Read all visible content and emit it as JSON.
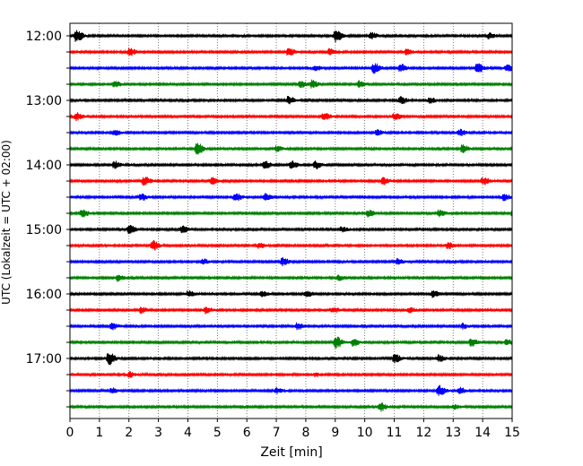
{
  "chart_data": {
    "type": "line",
    "subtype": "helicorder",
    "xlabel": "Zeit  [min]",
    "ylabel": "UTC (Lokalzeit = UTC + 02:00)",
    "xlim": [
      0,
      15
    ],
    "xticks": [
      "0",
      "1",
      "2",
      "3",
      "4",
      "5",
      "6",
      "7",
      "8",
      "9",
      "10",
      "11",
      "12",
      "13",
      "14",
      "15"
    ],
    "grid": "vertical-dotted",
    "hour_labels": [
      "12:00",
      "13:00",
      "14:00",
      "15:00",
      "16:00",
      "17:00"
    ],
    "row_interval_minutes": 15,
    "colors": [
      "#000000",
      "#ff0000",
      "#0000ff",
      "#008000"
    ],
    "traces": [
      {
        "start": "12:00",
        "color": "#000000",
        "events": [
          [
            0.2,
            1.0
          ],
          [
            9.0,
            0.9
          ],
          [
            10.2,
            0.5
          ],
          [
            14.2,
            0.4
          ]
        ]
      },
      {
        "start": "12:15",
        "color": "#ff0000",
        "events": [
          [
            2.0,
            0.6
          ],
          [
            7.4,
            0.6
          ],
          [
            8.8,
            0.5
          ],
          [
            11.4,
            0.4
          ]
        ]
      },
      {
        "start": "12:30",
        "color": "#0000ff",
        "events": [
          [
            8.3,
            0.4
          ],
          [
            10.3,
            0.8
          ],
          [
            11.2,
            0.6
          ],
          [
            13.8,
            0.8
          ],
          [
            14.8,
            0.6
          ]
        ]
      },
      {
        "start": "12:45",
        "color": "#008000",
        "events": [
          [
            1.5,
            0.5
          ],
          [
            7.8,
            0.6
          ],
          [
            8.2,
            0.6
          ],
          [
            9.8,
            0.5
          ]
        ]
      },
      {
        "start": "13:00",
        "color": "#000000",
        "events": [
          [
            7.4,
            0.6
          ],
          [
            11.2,
            0.6
          ],
          [
            12.2,
            0.4
          ]
        ]
      },
      {
        "start": "13:15",
        "color": "#ff0000",
        "events": [
          [
            0.2,
            0.6
          ],
          [
            8.6,
            0.6
          ],
          [
            11.0,
            0.6
          ]
        ]
      },
      {
        "start": "13:30",
        "color": "#0000ff",
        "events": [
          [
            1.5,
            0.4
          ],
          [
            10.4,
            0.4
          ],
          [
            13.2,
            0.5
          ]
        ]
      },
      {
        "start": "13:45",
        "color": "#008000",
        "events": [
          [
            4.3,
            0.9
          ],
          [
            7.0,
            0.4
          ],
          [
            13.3,
            0.6
          ]
        ]
      },
      {
        "start": "14:00",
        "color": "#000000",
        "events": [
          [
            1.5,
            0.6
          ],
          [
            6.6,
            0.6
          ],
          [
            7.5,
            0.6
          ],
          [
            8.3,
            0.6
          ]
        ]
      },
      {
        "start": "14:15",
        "color": "#ff0000",
        "events": [
          [
            2.5,
            0.7
          ],
          [
            4.8,
            0.5
          ],
          [
            10.6,
            0.5
          ],
          [
            14.0,
            0.6
          ]
        ]
      },
      {
        "start": "14:30",
        "color": "#0000ff",
        "events": [
          [
            2.4,
            0.5
          ],
          [
            5.6,
            0.6
          ],
          [
            6.6,
            0.5
          ],
          [
            14.7,
            0.5
          ]
        ]
      },
      {
        "start": "14:45",
        "color": "#008000",
        "events": [
          [
            0.4,
            0.6
          ],
          [
            10.1,
            0.5
          ],
          [
            12.5,
            0.5
          ],
          [
            15.0,
            0.4
          ]
        ]
      },
      {
        "start": "15:00",
        "color": "#000000",
        "events": [
          [
            2.0,
            0.7
          ],
          [
            3.8,
            0.5
          ],
          [
            9.2,
            0.4
          ]
        ]
      },
      {
        "start": "15:15",
        "color": "#ff0000",
        "events": [
          [
            2.8,
            0.8
          ],
          [
            6.4,
            0.4
          ],
          [
            12.8,
            0.5
          ]
        ]
      },
      {
        "start": "15:30",
        "color": "#0000ff",
        "events": [
          [
            4.5,
            0.4
          ],
          [
            7.2,
            0.6
          ],
          [
            11.1,
            0.4
          ]
        ]
      },
      {
        "start": "15:45",
        "color": "#008000",
        "events": [
          [
            1.6,
            0.5
          ],
          [
            9.1,
            0.4
          ]
        ]
      },
      {
        "start": "16:00",
        "color": "#000000",
        "events": [
          [
            4.0,
            0.5
          ],
          [
            6.5,
            0.4
          ],
          [
            8.0,
            0.5
          ],
          [
            12.3,
            0.5
          ]
        ]
      },
      {
        "start": "16:15",
        "color": "#ff0000",
        "events": [
          [
            2.4,
            0.5
          ],
          [
            4.6,
            0.5
          ],
          [
            8.9,
            0.4
          ],
          [
            11.5,
            0.4
          ]
        ]
      },
      {
        "start": "16:30",
        "color": "#0000ff",
        "events": [
          [
            1.4,
            0.5
          ],
          [
            7.7,
            0.5
          ],
          [
            13.3,
            0.4
          ]
        ]
      },
      {
        "start": "16:45",
        "color": "#008000",
        "events": [
          [
            9.0,
            1.0
          ],
          [
            9.6,
            0.6
          ],
          [
            13.6,
            0.6
          ],
          [
            14.8,
            0.4
          ]
        ]
      },
      {
        "start": "17:00",
        "color": "#000000",
        "events": [
          [
            1.3,
            1.0
          ],
          [
            11.0,
            0.7
          ],
          [
            12.5,
            0.5
          ]
        ]
      },
      {
        "start": "17:15",
        "color": "#ff0000",
        "events": [
          [
            2.0,
            0.4
          ],
          [
            8.3,
            0.3
          ]
        ]
      },
      {
        "start": "17:30",
        "color": "#0000ff",
        "events": [
          [
            1.4,
            0.4
          ],
          [
            7.0,
            0.4
          ],
          [
            12.5,
            0.8
          ],
          [
            13.2,
            0.5
          ]
        ]
      },
      {
        "start": "17:45",
        "color": "#008000",
        "events": [
          [
            10.5,
            0.7
          ],
          [
            13.0,
            0.3
          ]
        ]
      }
    ]
  }
}
